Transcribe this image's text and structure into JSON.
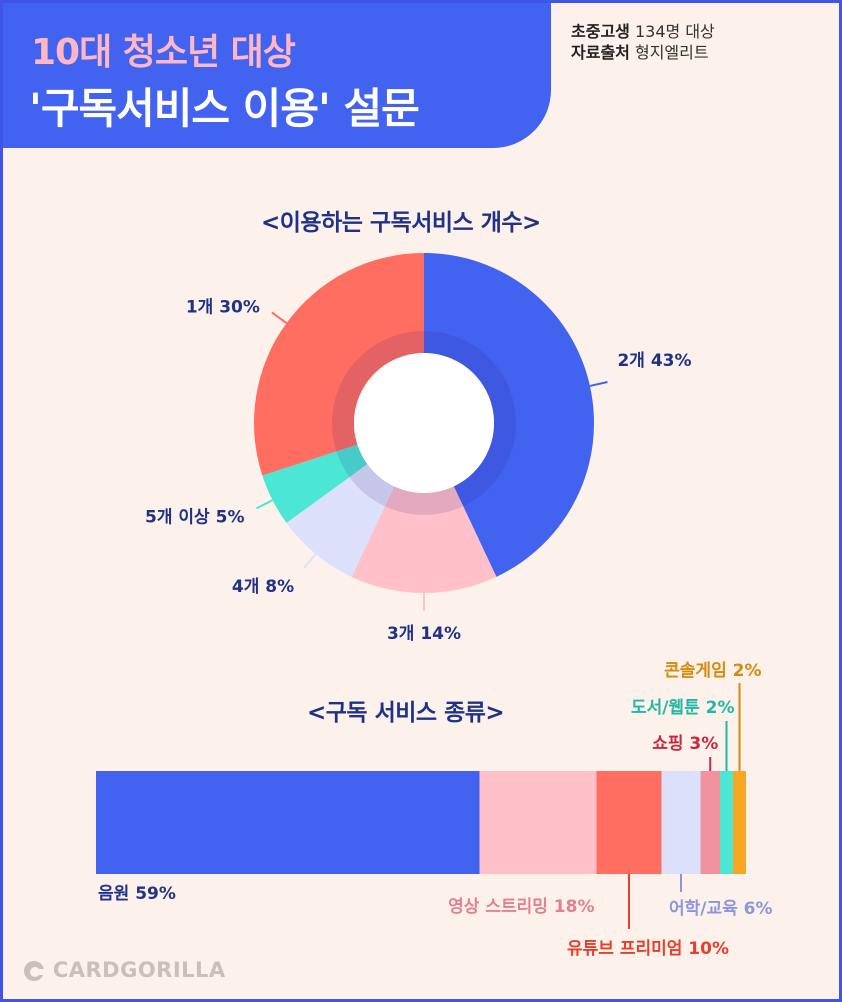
{
  "header": {
    "title_line1": "10대 청소년 대상",
    "title_line2": "'구독서비스 이용' 설문",
    "meta_label1": "초중고생",
    "meta_value1": "134명 대상",
    "meta_label2": "자료출처",
    "meta_value2": "형지엘리트"
  },
  "footer": {
    "logo_text": "CARDGORILLA"
  },
  "chart_data": [
    {
      "type": "pie",
      "title": "<이용하는 구독서비스 개수>",
      "categories": [
        "2개",
        "3개",
        "4개",
        "5개 이상",
        "1개"
      ],
      "values": [
        43,
        14,
        8,
        5,
        30
      ],
      "labels": [
        "2개 43%",
        "3개 14%",
        "4개 8%",
        "5개 이상 5%",
        "1개 30%"
      ],
      "colors": [
        "#4262f0",
        "#ffc0ca",
        "#dde0fa",
        "#4be6d4",
        "#ff6e60"
      ],
      "donut": true
    },
    {
      "type": "bar",
      "stacked": true,
      "orientation": "horizontal",
      "title": "<구독 서비스 종류>",
      "categories": [
        "음원",
        "영상 스트리밍",
        "유튜브 프리미엄",
        "어학/교육",
        "쇼핑",
        "도서/웹툰",
        "콘솔게임"
      ],
      "values": [
        59,
        18,
        10,
        6,
        3,
        2,
        2
      ],
      "labels": [
        "음원 59%",
        "영상 스트리밍 18%",
        "유튜브 프리미엄 10%",
        "어학/교육 6%",
        "쇼핑 3%",
        "도서/웹툰 2%",
        "콘솔게임 2%"
      ],
      "colors": [
        "#4262f0",
        "#ffc0ca",
        "#ff6e60",
        "#dde0fa",
        "#f0929f",
        "#4be6d4",
        "#f7a623"
      ],
      "label_colors": [
        "#1f3289",
        "#e28093",
        "#e63f2c",
        "#8c96dc",
        "#c8283f",
        "#21b8a4",
        "#d48a0c"
      ]
    }
  ]
}
